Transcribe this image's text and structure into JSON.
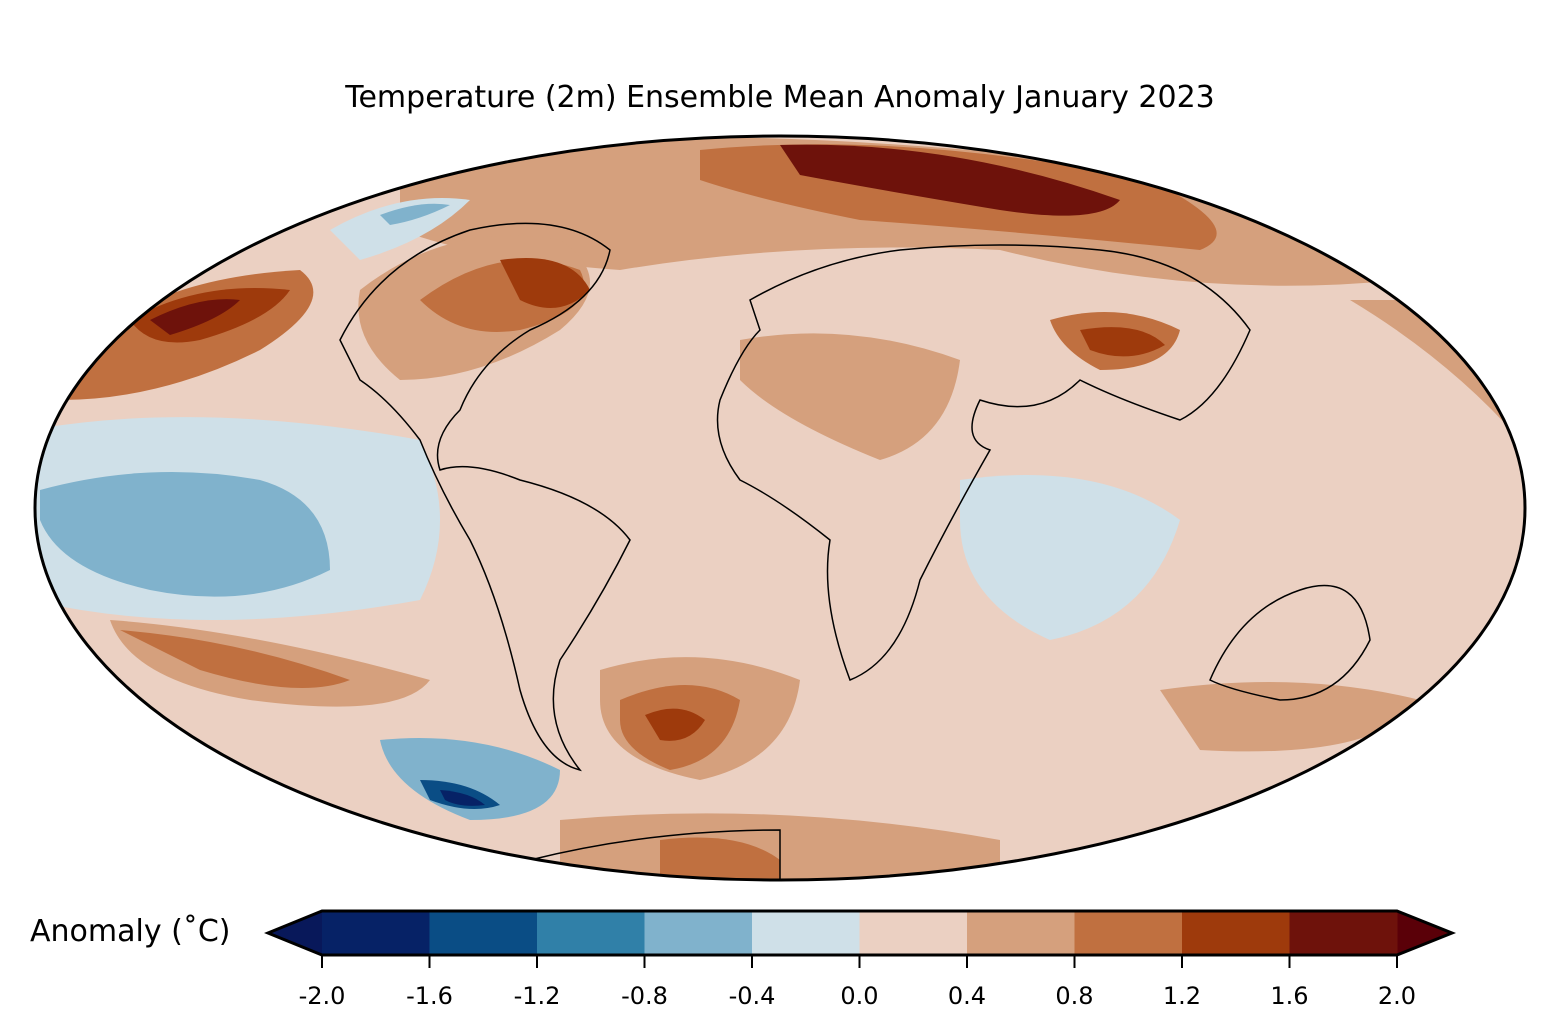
{
  "title": "Temperature (2m) Ensemble Mean Anomaly January 2023",
  "projection": "Mollweide",
  "colorbar": {
    "label": "Anomaly (˚C)",
    "ticks": [
      "-2.0",
      "-1.6",
      "-1.2",
      "-0.8",
      "-0.4",
      "0.0",
      "0.4",
      "0.8",
      "1.2",
      "1.6",
      "2.0"
    ],
    "bins": [
      {
        "from": -2.0,
        "to": -1.6,
        "color": "#062266"
      },
      {
        "from": -1.6,
        "to": -1.2,
        "color": "#0a4d85"
      },
      {
        "from": -1.2,
        "to": -0.8,
        "color": "#3080a8"
      },
      {
        "from": -0.8,
        "to": -0.4,
        "color": "#80b2cc"
      },
      {
        "from": -0.4,
        "to": 0.0,
        "color": "#cfe0e8"
      },
      {
        "from": 0.0,
        "to": 0.4,
        "color": "#ebd0c2"
      },
      {
        "from": 0.4,
        "to": 0.8,
        "color": "#d5a07d"
      },
      {
        "from": 0.8,
        "to": 1.2,
        "color": "#c07040"
      },
      {
        "from": 1.2,
        "to": 1.6,
        "color": "#9e3a0c"
      },
      {
        "from": 1.6,
        "to": 2.0,
        "color": "#6e120b"
      }
    ],
    "extend_low_color": "#08185a",
    "extend_high_color": "#5a0008"
  }
}
